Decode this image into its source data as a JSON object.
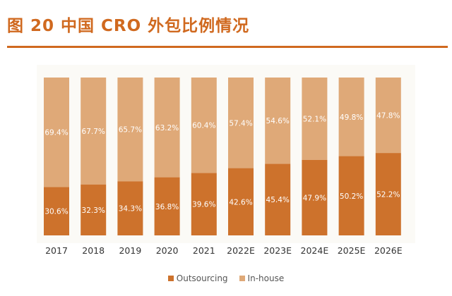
{
  "figure": {
    "title": "图 20  中国 CRO 外包比例情况"
  },
  "colors": {
    "accent": "#d0691f",
    "outsourcing": "#cd722c",
    "inhouse": "#dfa978",
    "label_text": "#ffffff",
    "axis_text": "#333333"
  },
  "chart_data": {
    "type": "bar",
    "stacked": true,
    "categories": [
      "2017",
      "2018",
      "2019",
      "2020",
      "2021",
      "2022E",
      "2023E",
      "2024E",
      "2025E",
      "2026E"
    ],
    "series": [
      {
        "name": "Outsourcing",
        "values": [
          30.6,
          32.3,
          34.3,
          36.8,
          39.6,
          42.6,
          45.4,
          47.9,
          50.2,
          52.2
        ],
        "labels": [
          "30.6%",
          "32.3%",
          "34.3%",
          "36.8%",
          "39.6%",
          "42.6%",
          "45.4%",
          "47.9%",
          "50.2%",
          "52.2%"
        ]
      },
      {
        "name": "In-house",
        "values": [
          69.4,
          67.7,
          65.7,
          63.2,
          60.4,
          57.4,
          54.6,
          52.1,
          49.8,
          47.8
        ],
        "labels": [
          "69.4%",
          "67.7%",
          "65.7%",
          "63.2%",
          "60.4%",
          "57.4%",
          "54.6%",
          "52.1%",
          "49.8%",
          "47.8%"
        ]
      }
    ],
    "ylim": [
      0,
      100
    ],
    "legend_position": "bottom",
    "grid": false
  }
}
